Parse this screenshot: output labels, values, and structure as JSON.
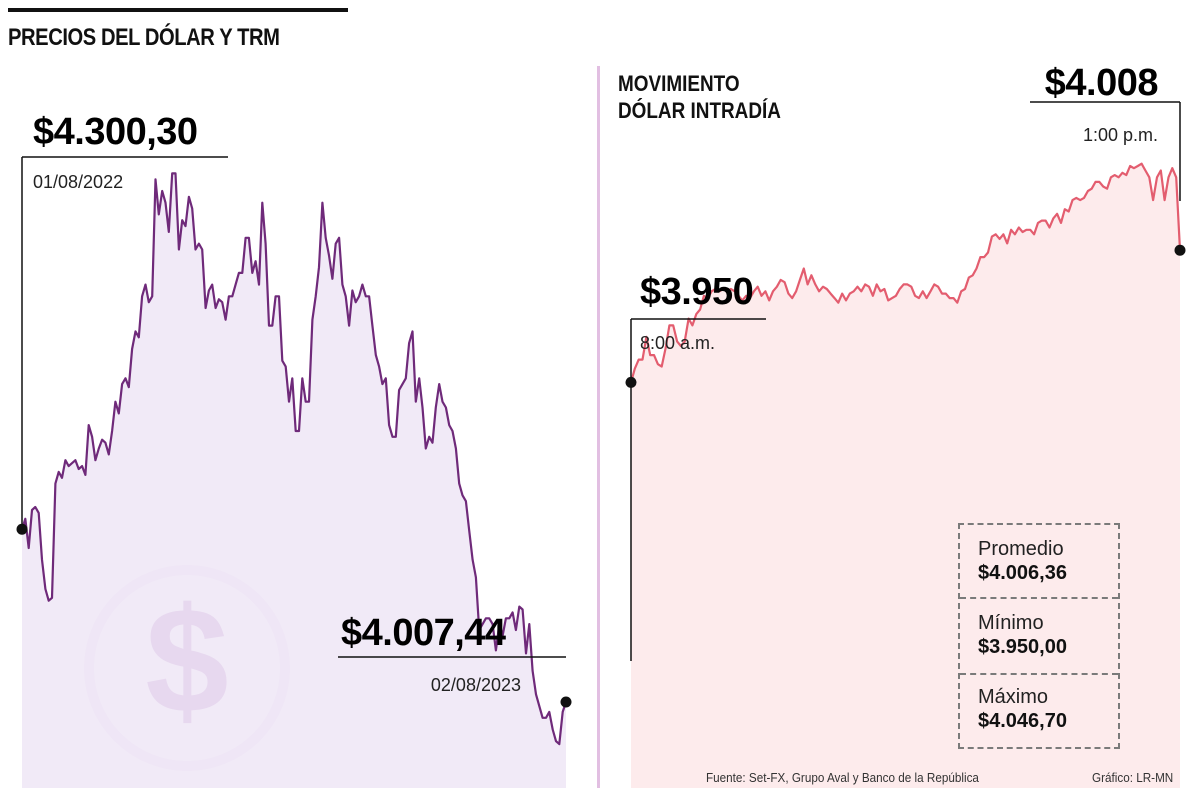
{
  "header": {
    "title": "PRECIOS DEL DÓLAR Y TRM"
  },
  "colors": {
    "trm_line": "#6f2a7a",
    "trm_fill": "#efe8f6",
    "trm_icon": "#e6d6ee",
    "intraday_line": "#e35d6f",
    "intraday_fill": "#fde9ea",
    "divider": "#e2bfe2"
  },
  "icons": {
    "background_symbol": "dollar-coin-icon"
  },
  "chart_data": [
    {
      "type": "area",
      "x_start": "01/08/2022",
      "x_end": "02/08/2023",
      "ylim": [
        3860,
        4950
      ],
      "start_annotation": {
        "value": "$4.300,30",
        "label": "01/08/2022"
      },
      "end_annotation": {
        "value": "$4.007,44",
        "label": "02/08/2023"
      },
      "series": [
        {
          "values": [
            4302,
            4320,
            4270,
            4335,
            4340,
            4330,
            4250,
            4200,
            4180,
            4185,
            4380,
            4400,
            4390,
            4420,
            4410,
            4415,
            4420,
            4405,
            4410,
            4395,
            4480,
            4460,
            4420,
            4440,
            4455,
            4450,
            4430,
            4470,
            4520,
            4500,
            4550,
            4560,
            4545,
            4610,
            4640,
            4630,
            4700,
            4720,
            4690,
            4700,
            4900,
            4840,
            4880,
            4860,
            4810,
            4910,
            4910,
            4780,
            4830,
            4820,
            4870,
            4850,
            4780,
            4790,
            4780,
            4680,
            4710,
            4720,
            4680,
            4695,
            4690,
            4660,
            4700,
            4700,
            4720,
            4740,
            4740,
            4800,
            4800,
            4740,
            4760,
            4720,
            4860,
            4790,
            4650,
            4650,
            4700,
            4700,
            4590,
            4580,
            4520,
            4560,
            4470,
            4470,
            4560,
            4520,
            4520,
            4660,
            4700,
            4750,
            4860,
            4800,
            4770,
            4730,
            4790,
            4800,
            4720,
            4700,
            4650,
            4710,
            4690,
            4700,
            4720,
            4700,
            4700,
            4650,
            4600,
            4580,
            4550,
            4560,
            4480,
            4460,
            4460,
            4540,
            4550,
            4560,
            4620,
            4640,
            4520,
            4560,
            4510,
            4440,
            4460,
            4450,
            4510,
            4550,
            4520,
            4510,
            4480,
            4470,
            4440,
            4380,
            4360,
            4350,
            4300,
            4250,
            4220,
            4130,
            4140,
            4150,
            4150,
            4140,
            4095,
            4140,
            4120,
            4150,
            4150,
            4160,
            4130,
            4170,
            4165,
            4090,
            4140,
            4060,
            4020,
            4000,
            3980,
            3980,
            3990,
            3960,
            3940,
            3935,
            3990,
            4007
          ]
        }
      ]
    },
    {
      "type": "area",
      "x_start": "8:00 a.m.",
      "x_end": "1:00 p.m.",
      "ylim": [
        3772,
        4052
      ],
      "start_annotation": {
        "value": "$3.950",
        "label": "8:00 a.m."
      },
      "end_annotation": {
        "value": "$4.008",
        "label": "1:00 p.m."
      },
      "series": [
        {
          "values": [
            3950,
            3956,
            3960,
            3960,
            3970,
            3962,
            3962,
            3958,
            3957,
            3965,
            3975,
            3975,
            3968,
            3966,
            3968,
            3978,
            3975,
            3980,
            3982,
            3988,
            3987,
            3990,
            3991,
            3990,
            3991,
            3990,
            3991,
            3990,
            3988,
            3986,
            3988,
            3987,
            3990,
            3992,
            3988,
            3990,
            3986,
            3990,
            3992,
            3995,
            3994,
            3989,
            3987,
            3990,
            3995,
            4000,
            3993,
            3997,
            3993,
            3990,
            3992,
            3991,
            3989,
            3987,
            3985,
            3989,
            3986,
            3989,
            3990,
            3992,
            3990,
            3993,
            3992,
            3988,
            3993,
            3990,
            3991,
            3986,
            3987,
            3988,
            3991,
            3993,
            3993,
            3992,
            3988,
            3987,
            3990,
            3987,
            3990,
            3993,
            3992,
            3989,
            3989,
            3987,
            3987,
            3985,
            3990,
            3991,
            3996,
            3997,
            4000,
            4005,
            4005,
            4007,
            4014,
            4015,
            4013,
            4015,
            4011,
            4017,
            4015,
            4018,
            4016,
            4017,
            4017,
            4015,
            4020,
            4021,
            4021,
            4018,
            4022,
            4024,
            4020,
            4026,
            4025,
            4030,
            4031,
            4030,
            4031,
            4034,
            4035,
            4038,
            4038,
            4036,
            4035,
            4040,
            4041,
            4040,
            4042,
            4041,
            4045,
            4044,
            4045,
            4046,
            4043,
            4040,
            4030,
            4040,
            4043,
            4030,
            4040,
            4044,
            4040,
            4008
          ]
        }
      ]
    }
  ],
  "intraday_title_lines": [
    "MOVIMIENTO",
    "DÓLAR INTRADÍA"
  ],
  "stats": {
    "promedio_label": "Promedio",
    "promedio_value": "$4.006,36",
    "minimo_label": "Mínimo",
    "minimo_value": "$3.950,00",
    "maximo_label": "Máximo",
    "maximo_value": "$4.046,70"
  },
  "footer": {
    "source": "Fuente: Set-FX, Grupo Aval y Banco de la República",
    "credit": "Gráfico: LR-MN"
  }
}
